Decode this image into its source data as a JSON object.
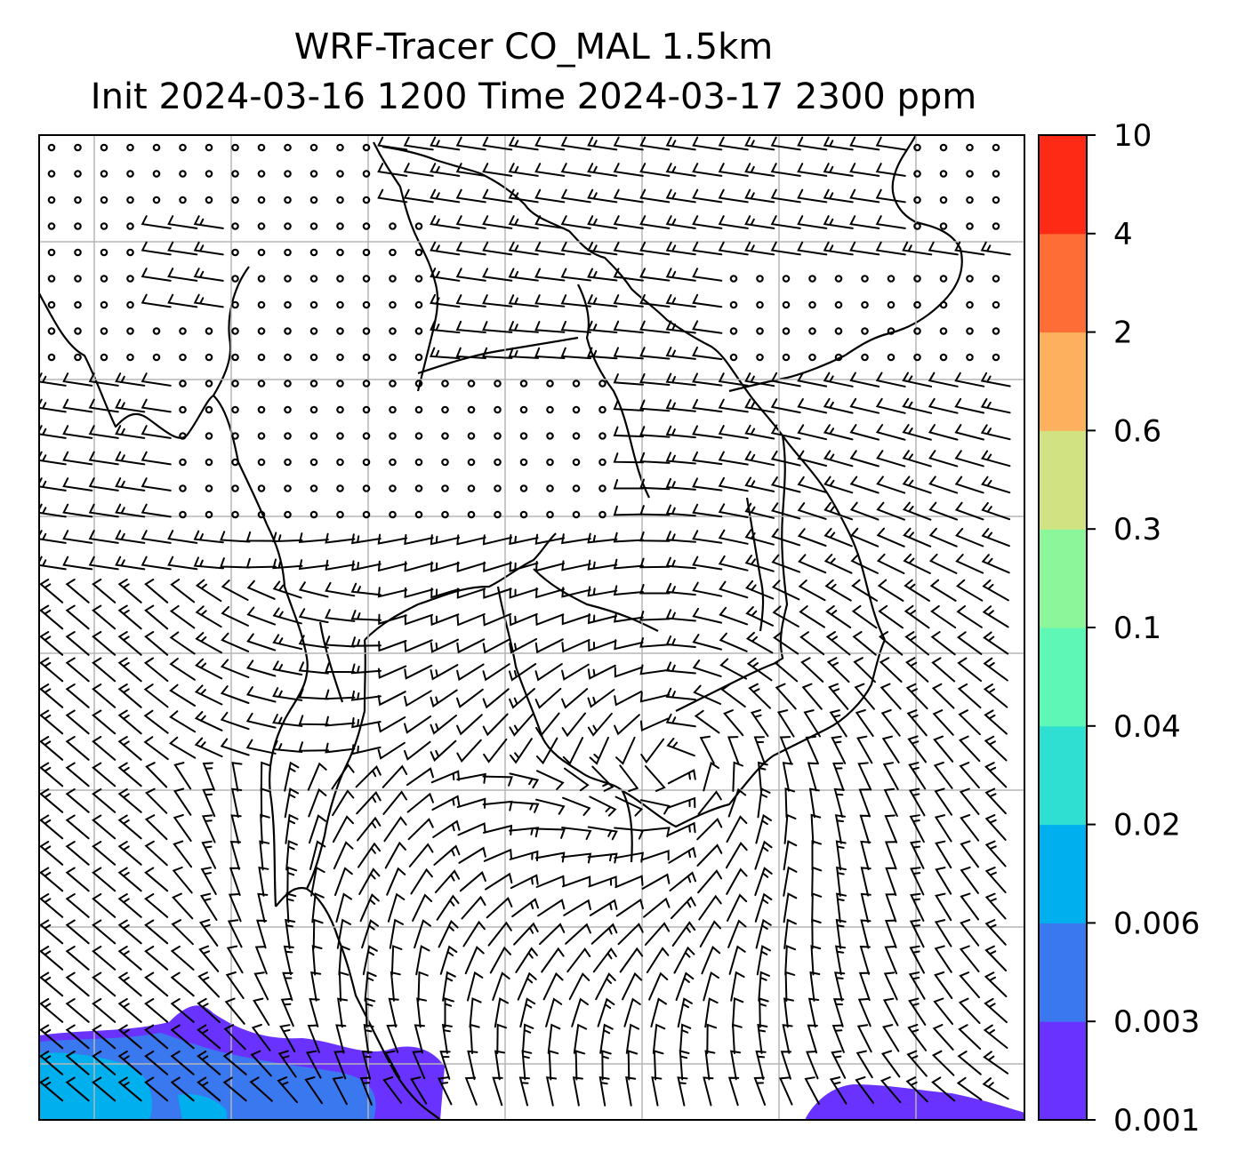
{
  "title": {
    "line1": "WRF-Tracer CO_MAL 1.5km",
    "line2": "Init 2024-03-16 1200 Time 2024-03-17 2300 ppm"
  },
  "colorbar": {
    "levels": [
      {
        "label": "0.001",
        "color": "#6a32ff"
      },
      {
        "label": "0.003",
        "color": "#3a78f0"
      },
      {
        "label": "0.006",
        "color": "#00b0ee"
      },
      {
        "label": "0.02",
        "color": "#2fe0d2"
      },
      {
        "label": "0.04",
        "color": "#5ff7b6"
      },
      {
        "label": "0.1",
        "color": "#8cf79a"
      },
      {
        "label": "0.3",
        "color": "#d1e283"
      },
      {
        "label": "0.6",
        "color": "#fdb15e"
      },
      {
        "label": "2",
        "color": "#ff6d37"
      },
      {
        "label": "4",
        "color": "#ff2a16"
      },
      {
        "label": "10",
        "color": ""
      }
    ]
  },
  "map": {
    "gridlines": true,
    "overlay": "wind-barbs",
    "calm_marker": "circle"
  }
}
